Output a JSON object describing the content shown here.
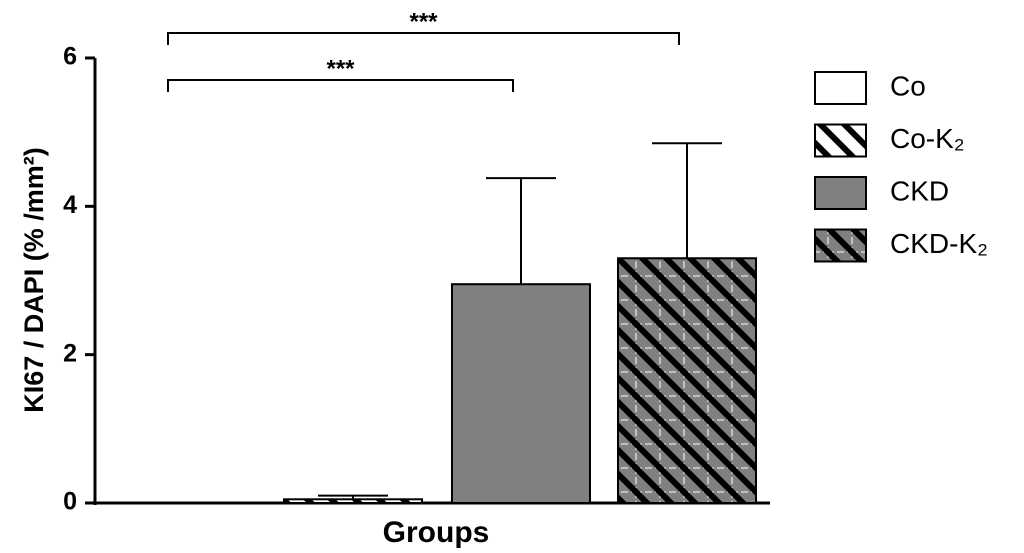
{
  "chart_data": {
    "type": "bar",
    "y_label": "KI67 / DAPI (% /mm²)",
    "x_label": "Groups",
    "categories": [
      null
    ],
    "series": [
      {
        "name": "Co",
        "color": "#ffffff",
        "pattern": "none",
        "values": [
          0
        ],
        "errors": [
          0
        ]
      },
      {
        "name": "Co-K₂",
        "color": "#ffffff",
        "pattern": "stripes",
        "values": [
          0.05
        ],
        "errors": [
          0.05
        ]
      },
      {
        "name": "CKD",
        "color": "#808080",
        "pattern": "none",
        "values": [
          2.95
        ],
        "errors": [
          1.43
        ]
      },
      {
        "name": "CKD-K₂",
        "color": "#808080",
        "pattern": "stripes-grid",
        "values": [
          3.3
        ],
        "errors": [
          1.55
        ]
      }
    ],
    "comparisons": [
      {
        "groups": [
          "Co",
          "CKD"
        ],
        "label": "***"
      },
      {
        "groups": [
          "Co",
          "CKD-K₂"
        ],
        "label": "***"
      }
    ],
    "ylim": [
      0,
      6
    ],
    "yticks": [
      0,
      2,
      4,
      6
    ],
    "grid": false,
    "legend": "right"
  }
}
